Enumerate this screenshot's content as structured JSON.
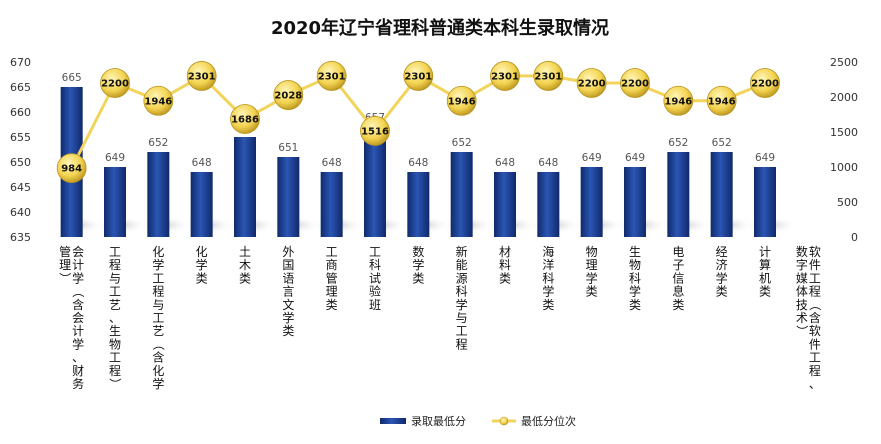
{
  "chart_data": {
    "type": "bar",
    "title": "2020年辽宁省理科普通类本科生录取情况",
    "categories": [
      "会计学（含会计学、财务管理）",
      "工程与工艺、生物工程）",
      "化学工程与工艺（含化学",
      "化学类",
      "土木类",
      "外国语言文学类",
      "工商管理类",
      "工科试验班",
      "数学类",
      "新能源科学与工程",
      "材料类",
      "海洋科学类",
      "物理学类",
      "生物科学类",
      "电子信息类",
      "经济学类",
      "计算机类",
      "软件工程（含软件工程、数字媒体技术）"
    ],
    "category_lines": [
      [
        "会计学（含会计学、财务",
        "管理）"
      ],
      [
        "工程与工艺、生物工程）"
      ],
      [
        "化学工程与工艺（含化学"
      ],
      [
        "化学类"
      ],
      [
        "土木类"
      ],
      [
        "外国语言文学类"
      ],
      [
        "工商管理类"
      ],
      [
        "工科试验班"
      ],
      [
        "数学类"
      ],
      [
        "新能源科学与工程"
      ],
      [
        "材料类"
      ],
      [
        "海洋科学类"
      ],
      [
        "物理学类"
      ],
      [
        "生物科学类"
      ],
      [
        "电子信息类"
      ],
      [
        "经济学类"
      ],
      [
        "计算机类"
      ],
      [
        "软件工程（含软件工程、",
        "数字媒体技术）"
      ]
    ],
    "series": [
      {
        "name": "录取最低分",
        "type": "bar",
        "axis": "left",
        "values": [
          665,
          649,
          652,
          648,
          655,
          651,
          648,
          657,
          648,
          652,
          648,
          648,
          649,
          649,
          652,
          652,
          649,
          null
        ],
        "color": "#1f3f8f"
      },
      {
        "name": "最低分位次",
        "type": "line",
        "axis": "right",
        "values": [
          984,
          2200,
          1946,
          2301,
          1686,
          2028,
          2301,
          1516,
          2301,
          1946,
          2301,
          2301,
          2200,
          2200,
          1946,
          1946,
          2200,
          null
        ],
        "color": "#f2d45c"
      }
    ],
    "y_left": {
      "min": 635,
      "max": 670,
      "ticks": [
        635,
        640,
        645,
        650,
        655,
        660,
        665,
        670
      ]
    },
    "y_right": {
      "min": 0,
      "max": 2500,
      "ticks": [
        0,
        500,
        1000,
        1500,
        2000,
        2500
      ]
    },
    "legend": "bottom-center",
    "grid": false
  }
}
